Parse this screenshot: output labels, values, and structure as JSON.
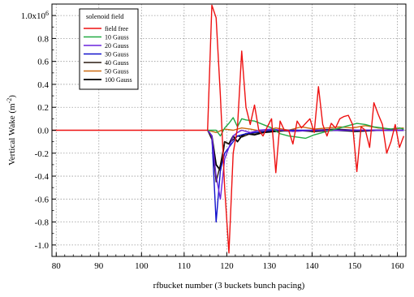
{
  "chart_data": {
    "type": "line",
    "title": "",
    "xlabel": "rfbucket number (3 buckets bunch pacing)",
    "ylabel": "Vertical Wake  (m",
    "ylabel_sup": "-2",
    "ylabel_close": ")",
    "xlim": [
      79,
      162
    ],
    "ylim": [
      -1.1,
      1.1
    ],
    "x_ticks": [
      80,
      90,
      100,
      110,
      120,
      130,
      140,
      150,
      160
    ],
    "x_tick_labels": [
      "80",
      "90",
      "100",
      "110",
      "120",
      "130",
      "140",
      "150",
      "160"
    ],
    "y_ticks": [
      1.0,
      0.8,
      0.6,
      0.4,
      0.2,
      0.0,
      -0.2,
      -0.4,
      -0.6,
      -0.8,
      -1.0
    ],
    "y_tick_labels": [
      "1.0x10",
      "0.8",
      "0.6",
      "0.4",
      "0.2",
      "0.0",
      "-0.2",
      "-0.4",
      "-0.6",
      "-0.8",
      "-1.0"
    ],
    "y_top_exponent": "6",
    "grid": true,
    "legend": {
      "title": "solenoid field",
      "placement": "top-left"
    },
    "series": [
      {
        "name": "field free",
        "color": "#ee1111",
        "x": [
          79,
          115.5,
          116.5,
          117.5,
          118.5,
          119.5,
          120.5,
          121.5,
          122.5,
          123.5,
          124.5,
          125.5,
          126.5,
          127.5,
          128.5,
          129.5,
          130.5,
          131.5,
          132.5,
          133.5,
          134.5,
          135.5,
          136.5,
          137.5,
          138.5,
          139.5,
          140.5,
          141.5,
          142.5,
          143.5,
          144.5,
          145.5,
          146.5,
          147.5,
          148.5,
          149.5,
          150.5,
          151.5,
          152.5,
          153.5,
          154.5,
          155.5,
          156.5,
          157.5,
          158.5,
          159.5,
          160.5,
          161.5
        ],
        "y": [
          0.0,
          0.0,
          1.09,
          0.98,
          0.3,
          -0.5,
          -1.07,
          -0.2,
          0.02,
          0.69,
          0.2,
          0.05,
          0.22,
          0.0,
          -0.05,
          0.03,
          0.1,
          -0.37,
          0.08,
          0.0,
          0.0,
          -0.12,
          0.08,
          0.02,
          0.06,
          0.1,
          -0.02,
          0.38,
          0.05,
          -0.05,
          0.06,
          0.02,
          0.1,
          0.12,
          0.13,
          0.05,
          -0.36,
          0.03,
          0.0,
          -0.15,
          0.24,
          0.14,
          0.05,
          -0.2,
          -0.1,
          0.05,
          -0.15,
          -0.05
        ]
      },
      {
        "name": "10 Gauss",
        "color": "#22aa44",
        "x": [
          115.5,
          117.5,
          118.5,
          119.5,
          120.5,
          121.5,
          122.5,
          123.5,
          124.5,
          126.5,
          128.5,
          130.5,
          132.5,
          134.5,
          136.5,
          138.5,
          140.5,
          142.5,
          144.5,
          146.5,
          148.5,
          150.5,
          152.5,
          154.5,
          156.5,
          158.5,
          160.5,
          161.5
        ],
        "y": [
          0.0,
          0.0,
          -0.05,
          0.02,
          0.06,
          0.11,
          0.03,
          0.1,
          0.09,
          0.08,
          0.05,
          0.02,
          -0.03,
          -0.05,
          -0.06,
          -0.07,
          -0.04,
          -0.02,
          0.0,
          0.02,
          0.04,
          0.06,
          0.05,
          0.03,
          0.02,
          0.01,
          0.02,
          0.01
        ]
      },
      {
        "name": "20 Gauss",
        "color": "#6a22dd",
        "x": [
          115.5,
          116.5,
          117.5,
          118.5,
          119.5,
          120.5,
          121.5,
          122.5,
          123.5,
          125.5,
          127.5,
          130.5,
          135.5,
          140.5,
          145.5,
          150.5,
          155.5,
          161.5
        ],
        "y": [
          0.0,
          -0.05,
          -0.4,
          -0.6,
          -0.25,
          -0.15,
          -0.05,
          -0.02,
          0.0,
          -0.02,
          0.0,
          0.01,
          -0.01,
          0.0,
          0.0,
          0.0,
          0.0,
          0.0
        ]
      },
      {
        "name": "30 Gauss",
        "color": "#1111cc",
        "x": [
          115.5,
          116.5,
          117.5,
          118.5,
          119.5,
          120.5,
          121.5,
          122.5,
          124.5,
          126.5,
          128.5,
          130.5,
          135.5,
          140.5,
          145.5,
          150.5,
          155.5,
          161.5
        ],
        "y": [
          0.0,
          -0.05,
          -0.8,
          -0.35,
          -0.2,
          -0.15,
          -0.1,
          -0.05,
          -0.03,
          -0.02,
          -0.01,
          0.0,
          0.0,
          0.0,
          0.0,
          0.0,
          0.0,
          0.0
        ]
      },
      {
        "name": "40 Gauss",
        "color": "#2a1a10",
        "x": [
          115.5,
          116.5,
          117.5,
          118.5,
          119.5,
          120.5,
          121.5,
          122.5,
          123.5,
          125.5,
          127.5,
          130.5,
          135.5,
          140.5,
          145.5,
          150.5,
          155.5,
          161.5
        ],
        "y": [
          0.0,
          -0.08,
          -0.45,
          -0.3,
          -0.1,
          -0.12,
          -0.08,
          -0.05,
          -0.06,
          -0.03,
          -0.02,
          0.0,
          -0.01,
          0.0,
          0.01,
          0.0,
          0.0,
          0.0
        ]
      },
      {
        "name": "50 Gauss",
        "color": "#cc6a10",
        "x": [
          115.5,
          117.5,
          119.5,
          121.5,
          123.5,
          125.5,
          128.5,
          131.5,
          134.5,
          137.5,
          140.5,
          143.5,
          146.5,
          149.5,
          152.5,
          155.5,
          158.5,
          161.5
        ],
        "y": [
          0.0,
          -0.02,
          0.01,
          0.0,
          0.02,
          0.01,
          -0.01,
          0.02,
          0.0,
          0.03,
          0.01,
          0.02,
          0.03,
          0.02,
          0.04,
          0.02,
          0.01,
          0.02
        ]
      },
      {
        "name": "100 Gauss",
        "color": "#000000",
        "x": [
          115.5,
          116.5,
          117.5,
          118.5,
          119.5,
          120.5,
          121.5,
          122.5,
          123.5,
          124.5,
          126.5,
          128.5,
          131.5,
          135.5,
          140.5,
          145.5,
          150.5,
          155.5,
          161.5
        ],
        "y": [
          0.0,
          -0.05,
          -0.3,
          -0.35,
          -0.1,
          -0.12,
          -0.05,
          -0.1,
          -0.05,
          -0.03,
          -0.04,
          -0.02,
          -0.01,
          0.0,
          -0.01,
          0.0,
          -0.01,
          0.0,
          0.0
        ]
      }
    ]
  }
}
